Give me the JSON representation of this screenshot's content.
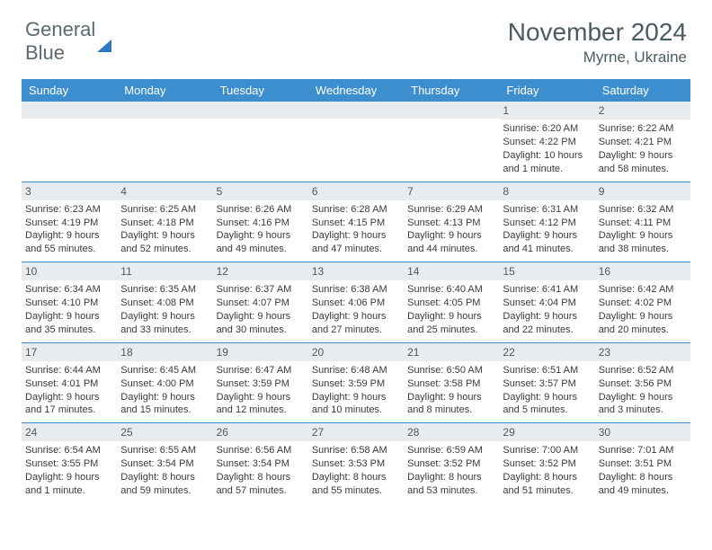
{
  "logo": {
    "part1": "General",
    "part2": "Blue"
  },
  "title": "November 2024",
  "location": "Myrne, Ukraine",
  "colors": {
    "header_bg": "#3d8ecf",
    "header_text": "#ffffff",
    "daynum_bg": "#e9ecef",
    "week_border": "#3d8ecf",
    "logo_gray": "#5a6a72",
    "logo_blue": "#2b78bf",
    "title_color": "#4a5b64"
  },
  "fonts": {
    "month_title_size": 28,
    "location_size": 17,
    "day_header_size": 13,
    "cell_size": 11,
    "daynum_size": 12
  },
  "day_names": [
    "Sunday",
    "Monday",
    "Tuesday",
    "Wednesday",
    "Thursday",
    "Friday",
    "Saturday"
  ],
  "weeks": [
    [
      {
        "day": "",
        "sunrise": "",
        "sunset": "",
        "daylight": ""
      },
      {
        "day": "",
        "sunrise": "",
        "sunset": "",
        "daylight": ""
      },
      {
        "day": "",
        "sunrise": "",
        "sunset": "",
        "daylight": ""
      },
      {
        "day": "",
        "sunrise": "",
        "sunset": "",
        "daylight": ""
      },
      {
        "day": "",
        "sunrise": "",
        "sunset": "",
        "daylight": ""
      },
      {
        "day": "1",
        "sunrise": "Sunrise: 6:20 AM",
        "sunset": "Sunset: 4:22 PM",
        "daylight": "Daylight: 10 hours and 1 minute."
      },
      {
        "day": "2",
        "sunrise": "Sunrise: 6:22 AM",
        "sunset": "Sunset: 4:21 PM",
        "daylight": "Daylight: 9 hours and 58 minutes."
      }
    ],
    [
      {
        "day": "3",
        "sunrise": "Sunrise: 6:23 AM",
        "sunset": "Sunset: 4:19 PM",
        "daylight": "Daylight: 9 hours and 55 minutes."
      },
      {
        "day": "4",
        "sunrise": "Sunrise: 6:25 AM",
        "sunset": "Sunset: 4:18 PM",
        "daylight": "Daylight: 9 hours and 52 minutes."
      },
      {
        "day": "5",
        "sunrise": "Sunrise: 6:26 AM",
        "sunset": "Sunset: 4:16 PM",
        "daylight": "Daylight: 9 hours and 49 minutes."
      },
      {
        "day": "6",
        "sunrise": "Sunrise: 6:28 AM",
        "sunset": "Sunset: 4:15 PM",
        "daylight": "Daylight: 9 hours and 47 minutes."
      },
      {
        "day": "7",
        "sunrise": "Sunrise: 6:29 AM",
        "sunset": "Sunset: 4:13 PM",
        "daylight": "Daylight: 9 hours and 44 minutes."
      },
      {
        "day": "8",
        "sunrise": "Sunrise: 6:31 AM",
        "sunset": "Sunset: 4:12 PM",
        "daylight": "Daylight: 9 hours and 41 minutes."
      },
      {
        "day": "9",
        "sunrise": "Sunrise: 6:32 AM",
        "sunset": "Sunset: 4:11 PM",
        "daylight": "Daylight: 9 hours and 38 minutes."
      }
    ],
    [
      {
        "day": "10",
        "sunrise": "Sunrise: 6:34 AM",
        "sunset": "Sunset: 4:10 PM",
        "daylight": "Daylight: 9 hours and 35 minutes."
      },
      {
        "day": "11",
        "sunrise": "Sunrise: 6:35 AM",
        "sunset": "Sunset: 4:08 PM",
        "daylight": "Daylight: 9 hours and 33 minutes."
      },
      {
        "day": "12",
        "sunrise": "Sunrise: 6:37 AM",
        "sunset": "Sunset: 4:07 PM",
        "daylight": "Daylight: 9 hours and 30 minutes."
      },
      {
        "day": "13",
        "sunrise": "Sunrise: 6:38 AM",
        "sunset": "Sunset: 4:06 PM",
        "daylight": "Daylight: 9 hours and 27 minutes."
      },
      {
        "day": "14",
        "sunrise": "Sunrise: 6:40 AM",
        "sunset": "Sunset: 4:05 PM",
        "daylight": "Daylight: 9 hours and 25 minutes."
      },
      {
        "day": "15",
        "sunrise": "Sunrise: 6:41 AM",
        "sunset": "Sunset: 4:04 PM",
        "daylight": "Daylight: 9 hours and 22 minutes."
      },
      {
        "day": "16",
        "sunrise": "Sunrise: 6:42 AM",
        "sunset": "Sunset: 4:02 PM",
        "daylight": "Daylight: 9 hours and 20 minutes."
      }
    ],
    [
      {
        "day": "17",
        "sunrise": "Sunrise: 6:44 AM",
        "sunset": "Sunset: 4:01 PM",
        "daylight": "Daylight: 9 hours and 17 minutes."
      },
      {
        "day": "18",
        "sunrise": "Sunrise: 6:45 AM",
        "sunset": "Sunset: 4:00 PM",
        "daylight": "Daylight: 9 hours and 15 minutes."
      },
      {
        "day": "19",
        "sunrise": "Sunrise: 6:47 AM",
        "sunset": "Sunset: 3:59 PM",
        "daylight": "Daylight: 9 hours and 12 minutes."
      },
      {
        "day": "20",
        "sunrise": "Sunrise: 6:48 AM",
        "sunset": "Sunset: 3:59 PM",
        "daylight": "Daylight: 9 hours and 10 minutes."
      },
      {
        "day": "21",
        "sunrise": "Sunrise: 6:50 AM",
        "sunset": "Sunset: 3:58 PM",
        "daylight": "Daylight: 9 hours and 8 minutes."
      },
      {
        "day": "22",
        "sunrise": "Sunrise: 6:51 AM",
        "sunset": "Sunset: 3:57 PM",
        "daylight": "Daylight: 9 hours and 5 minutes."
      },
      {
        "day": "23",
        "sunrise": "Sunrise: 6:52 AM",
        "sunset": "Sunset: 3:56 PM",
        "daylight": "Daylight: 9 hours and 3 minutes."
      }
    ],
    [
      {
        "day": "24",
        "sunrise": "Sunrise: 6:54 AM",
        "sunset": "Sunset: 3:55 PM",
        "daylight": "Daylight: 9 hours and 1 minute."
      },
      {
        "day": "25",
        "sunrise": "Sunrise: 6:55 AM",
        "sunset": "Sunset: 3:54 PM",
        "daylight": "Daylight: 8 hours and 59 minutes."
      },
      {
        "day": "26",
        "sunrise": "Sunrise: 6:56 AM",
        "sunset": "Sunset: 3:54 PM",
        "daylight": "Daylight: 8 hours and 57 minutes."
      },
      {
        "day": "27",
        "sunrise": "Sunrise: 6:58 AM",
        "sunset": "Sunset: 3:53 PM",
        "daylight": "Daylight: 8 hours and 55 minutes."
      },
      {
        "day": "28",
        "sunrise": "Sunrise: 6:59 AM",
        "sunset": "Sunset: 3:52 PM",
        "daylight": "Daylight: 8 hours and 53 minutes."
      },
      {
        "day": "29",
        "sunrise": "Sunrise: 7:00 AM",
        "sunset": "Sunset: 3:52 PM",
        "daylight": "Daylight: 8 hours and 51 minutes."
      },
      {
        "day": "30",
        "sunrise": "Sunrise: 7:01 AM",
        "sunset": "Sunset: 3:51 PM",
        "daylight": "Daylight: 8 hours and 49 minutes."
      }
    ]
  ]
}
